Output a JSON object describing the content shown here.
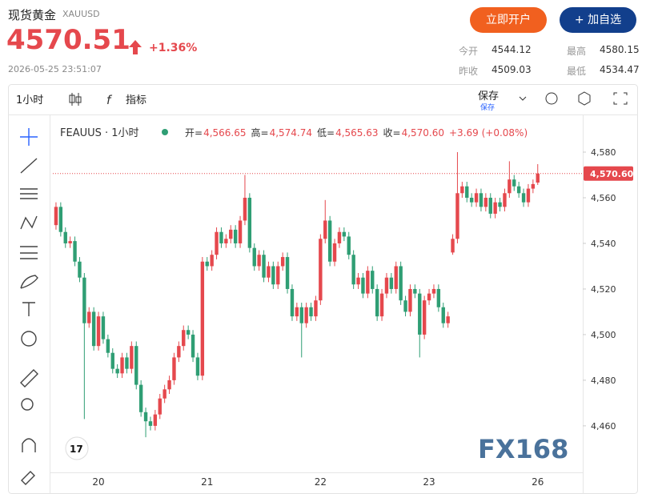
{
  "header": {
    "title": "现货黄金",
    "symbol": "XAUUSD",
    "price": "4570.51",
    "change": "+1.36%",
    "timestamp": "2026-05-25 23:51:07",
    "buttons": [
      "立即开户",
      "+ 加自选"
    ],
    "stats": [
      {
        "label": "今开",
        "value": "4544.12"
      },
      {
        "label": "最高",
        "value": "4580.15"
      },
      {
        "label": "昨收",
        "value": "4509.03"
      },
      {
        "label": "最低",
        "value": "4534.47"
      }
    ]
  },
  "toolbar": {
    "interval": "1小时",
    "indicators": "指标",
    "save": "保存",
    "save_sub": "保存"
  },
  "legend": {
    "symbol": "FEAUUS · 1小时",
    "items": [
      {
        "label": "开=",
        "value": "4,566.65"
      },
      {
        "label": "高=",
        "value": "4,574.74"
      },
      {
        "label": "低=",
        "value": "4,565.63"
      },
      {
        "label": "收=",
        "value": "4,570.60"
      }
    ],
    "change": "+3.69 (+0.08%)"
  },
  "watermark": "FX168",
  "chart_data": {
    "type": "candlestick",
    "up_color": "#e5484d",
    "down_color": "#2f9e74",
    "categories": [
      null,
      null,
      null,
      null,
      null,
      null,
      null,
      null,
      null,
      "20",
      null,
      null,
      null,
      null,
      null,
      null,
      null,
      null,
      null,
      null,
      null,
      null,
      null,
      null,
      null,
      null,
      null,
      null,
      null,
      null,
      null,
      null,
      "21",
      null,
      null,
      null,
      null,
      null,
      null,
      null,
      null,
      null,
      null,
      null,
      null,
      null,
      null,
      null,
      null,
      null,
      null,
      null,
      null,
      null,
      null,
      null,
      "22",
      null,
      null,
      null,
      null,
      null,
      null,
      null,
      null,
      null,
      null,
      null,
      null,
      null,
      null,
      null,
      null,
      null,
      null,
      null,
      null,
      null,
      null,
      "23",
      null,
      null,
      null,
      null,
      null,
      null,
      null,
      null,
      null,
      null,
      null,
      null,
      null,
      null,
      null,
      null,
      null,
      null,
      null,
      null,
      null,
      null,
      "26"
    ],
    "open": [
      4548,
      4556,
      4545,
      4540,
      4541,
      4532,
      4525,
      4505,
      4510,
      4495,
      4508,
      4498,
      4492,
      4485,
      4483,
      4490,
      4485,
      4495,
      4478,
      4466,
      4462,
      4460,
      4465,
      4472,
      4476,
      4480,
      4490,
      4495,
      4502,
      4500,
      4490,
      4482,
      4532,
      4530,
      4535,
      4545,
      4540,
      4542,
      4546,
      4540,
      4550,
      4560,
      4538,
      4530,
      4535,
      4525,
      4530,
      4522,
      4530,
      4534,
      4520,
      4508,
      4512,
      4505,
      4512,
      4508,
      4515,
      4542,
      4550,
      4532,
      4540,
      4545,
      4543,
      4535,
      4522,
      4525,
      4518,
      4528,
      4520,
      4508,
      4518,
      4525,
      4520,
      4530,
      4515,
      4510,
      4520,
      4518,
      4500,
      4515,
      4518,
      4520,
      4512,
      4505,
      4536,
      4542,
      4562,
      4565,
      4560,
      4558,
      4562,
      4556,
      4560,
      4553,
      4558,
      4556,
      4562,
      4568,
      4565,
      4562,
      4558,
      4564,
      4566.65
    ],
    "high": [
      4558,
      4558,
      4547,
      4543,
      4543,
      4534,
      4527,
      4512,
      4512,
      4510,
      4510,
      4500,
      4494,
      4487,
      4492,
      4492,
      4497,
      4497,
      4480,
      4468,
      4464,
      4467,
      4474,
      4478,
      4482,
      4492,
      4497,
      4504,
      4504,
      4502,
      4492,
      4534,
      4534,
      4537,
      4547,
      4547,
      4544,
      4548,
      4548,
      4552,
      4570,
      4562,
      4540,
      4537,
      4537,
      4532,
      4532,
      4532,
      4536,
      4536,
      4522,
      4514,
      4514,
      4514,
      4514,
      4517,
      4544,
      4559,
      4552,
      4542,
      4547,
      4547,
      4545,
      4537,
      4527,
      4527,
      4530,
      4530,
      4522,
      4520,
      4527,
      4527,
      4532,
      4532,
      4517,
      4522,
      4522,
      4520,
      4517,
      4520,
      4522,
      4522,
      4514,
      4510,
      4544,
      4580,
      4567,
      4567,
      4562,
      4564,
      4564,
      4562,
      4562,
      4560,
      4560,
      4564,
      4576,
      4570,
      4567,
      4564,
      4566,
      4568,
      4574.74
    ],
    "low": [
      4546,
      4543,
      4538,
      4538,
      4530,
      4523,
      4463,
      4503,
      4493,
      4493,
      4496,
      4490,
      4483,
      4481,
      4481,
      4483,
      4483,
      4476,
      4464,
      4455,
      4458,
      4458,
      4463,
      4470,
      4474,
      4478,
      4488,
      4493,
      4498,
      4488,
      4480,
      4480,
      4528,
      4528,
      4533,
      4538,
      4538,
      4540,
      4538,
      4538,
      4548,
      4536,
      4528,
      4528,
      4523,
      4523,
      4520,
      4520,
      4528,
      4518,
      4506,
      4506,
      4490,
      4503,
      4506,
      4506,
      4513,
      4540,
      4530,
      4530,
      4538,
      4541,
      4533,
      4520,
      4520,
      4516,
      4516,
      4518,
      4506,
      4506,
      4516,
      4518,
      4518,
      4513,
      4508,
      4508,
      4516,
      4490,
      4498,
      4513,
      4516,
      4510,
      4503,
      4503,
      4535,
      4540,
      4560,
      4558,
      4556,
      4556,
      4554,
      4554,
      4551,
      4551,
      4554,
      4554,
      4560,
      4563,
      4560,
      4556,
      4556,
      4562,
      4565.63
    ],
    "close": [
      4556,
      4545,
      4540,
      4541,
      4532,
      4525,
      4505,
      4510,
      4495,
      4508,
      4498,
      4492,
      4485,
      4483,
      4490,
      4485,
      4495,
      4478,
      4466,
      4462,
      4460,
      4465,
      4472,
      4476,
      4480,
      4490,
      4495,
      4502,
      4500,
      4490,
      4482,
      4532,
      4530,
      4535,
      4545,
      4540,
      4542,
      4546,
      4540,
      4550,
      4560,
      4538,
      4530,
      4535,
      4525,
      4530,
      4522,
      4530,
      4534,
      4520,
      4508,
      4512,
      4505,
      4512,
      4508,
      4515,
      4542,
      4550,
      4532,
      4540,
      4545,
      4543,
      4535,
      4522,
      4525,
      4518,
      4528,
      4520,
      4508,
      4518,
      4525,
      4520,
      4530,
      4515,
      4510,
      4520,
      4518,
      4500,
      4515,
      4518,
      4520,
      4512,
      4505,
      4508,
      4542,
      4562,
      4565,
      4560,
      4558,
      4562,
      4556,
      4560,
      4553,
      4558,
      4556,
      4562,
      4568,
      4565,
      4562,
      4558,
      4564,
      4566,
      4570.6
    ],
    "ylim": [
      4439.6,
      4596.5
    ],
    "yticks": [
      {
        "value": 4460,
        "label": "4,460"
      },
      {
        "value": 4480,
        "label": "4,480"
      },
      {
        "value": 4500,
        "label": "4,500"
      },
      {
        "value": 4520,
        "label": "4,520"
      },
      {
        "value": 4540,
        "label": "4,540"
      },
      {
        "value": 4560,
        "label": "4,560"
      },
      {
        "value": 4580,
        "label": "4,580"
      }
    ],
    "last_price": {
      "value": 4570.6,
      "label": "4,570.60"
    }
  }
}
